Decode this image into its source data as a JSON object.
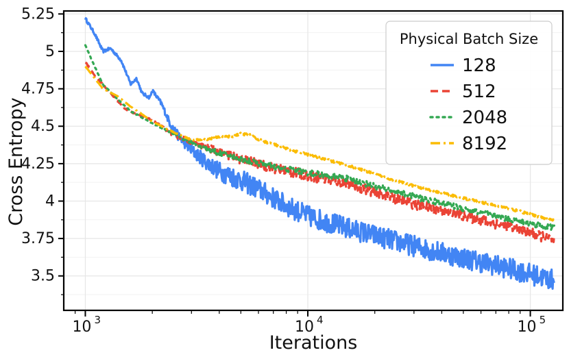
{
  "chart_data": {
    "type": "line",
    "title": "",
    "xlabel": "Iterations",
    "ylabel": "Cross Entropy",
    "xscale": "log",
    "xlim": [
      800,
      140000
    ],
    "ylim": [
      3.27,
      5.27
    ],
    "grid": true,
    "legend_title": "Physical Batch Size",
    "legend_position": "top-right",
    "x_ticks": [
      {
        "value": 1000,
        "base": "10",
        "exp": "3"
      },
      {
        "value": 10000,
        "base": "10",
        "exp": "4"
      },
      {
        "value": 100000,
        "base": "10",
        "exp": "5"
      }
    ],
    "y_ticks": [
      {
        "value": 3.5,
        "label": "3.5"
      },
      {
        "value": 3.75,
        "label": "3.75"
      },
      {
        "value": 4.0,
        "label": "4"
      },
      {
        "value": 4.25,
        "label": "4.25"
      },
      {
        "value": 4.5,
        "label": "4.5"
      },
      {
        "value": 4.75,
        "label": "4.75"
      },
      {
        "value": 5.0,
        "label": "5"
      },
      {
        "value": 5.25,
        "label": "5.25"
      }
    ],
    "series": [
      {
        "name": "128",
        "color": "#4285f4",
        "dash": "solid",
        "noise": 0.07,
        "points": [
          [
            1000,
            5.22
          ],
          [
            1100,
            5.12
          ],
          [
            1200,
            5.0
          ],
          [
            1300,
            5.02
          ],
          [
            1450,
            4.94
          ],
          [
            1600,
            4.78
          ],
          [
            1700,
            4.82
          ],
          [
            1800,
            4.72
          ],
          [
            1950,
            4.69
          ],
          [
            2000,
            4.74
          ],
          [
            2200,
            4.65
          ],
          [
            2400,
            4.52
          ],
          [
            2600,
            4.44
          ],
          [
            3000,
            4.34
          ],
          [
            3500,
            4.26
          ],
          [
            4000,
            4.2
          ],
          [
            5000,
            4.14
          ],
          [
            6000,
            4.08
          ],
          [
            7000,
            4.02
          ],
          [
            8000,
            3.97
          ],
          [
            10000,
            3.9
          ],
          [
            15000,
            3.82
          ],
          [
            20000,
            3.77
          ],
          [
            30000,
            3.7
          ],
          [
            50000,
            3.62
          ],
          [
            80000,
            3.55
          ],
          [
            128000,
            3.47
          ]
        ]
      },
      {
        "name": "512",
        "color": "#ea4335",
        "dash": "dashed",
        "noise": 0.035,
        "points": [
          [
            1000,
            4.93
          ],
          [
            1100,
            4.84
          ],
          [
            1300,
            4.72
          ],
          [
            1500,
            4.62
          ],
          [
            1700,
            4.58
          ],
          [
            2000,
            4.54
          ],
          [
            2500,
            4.44
          ],
          [
            3000,
            4.4
          ],
          [
            4000,
            4.33
          ],
          [
            5000,
            4.28
          ],
          [
            7000,
            4.22
          ],
          [
            10000,
            4.17
          ],
          [
            15000,
            4.12
          ],
          [
            20000,
            4.06
          ],
          [
            30000,
            3.98
          ],
          [
            50000,
            3.9
          ],
          [
            80000,
            3.83
          ],
          [
            128000,
            3.74
          ]
        ]
      },
      {
        "name": "2048",
        "color": "#34a853",
        "dash": "dotted",
        "noise": 0.02,
        "points": [
          [
            1000,
            5.04
          ],
          [
            1100,
            4.9
          ],
          [
            1200,
            4.78
          ],
          [
            1400,
            4.68
          ],
          [
            1600,
            4.6
          ],
          [
            2000,
            4.52
          ],
          [
            2500,
            4.45
          ],
          [
            3000,
            4.39
          ],
          [
            4000,
            4.32
          ],
          [
            5000,
            4.28
          ],
          [
            7000,
            4.23
          ],
          [
            10000,
            4.19
          ],
          [
            15000,
            4.15
          ],
          [
            20000,
            4.1
          ],
          [
            30000,
            4.03
          ],
          [
            50000,
            3.95
          ],
          [
            80000,
            3.88
          ],
          [
            128000,
            3.82
          ]
        ]
      },
      {
        "name": "8192",
        "color": "#fbbc04",
        "dash": "dashdot",
        "noise": 0.008,
        "points": [
          [
            1000,
            4.9
          ],
          [
            1200,
            4.75
          ],
          [
            1400,
            4.7
          ],
          [
            1600,
            4.63
          ],
          [
            1800,
            4.58
          ],
          [
            2000,
            4.53
          ],
          [
            2500,
            4.46
          ],
          [
            3000,
            4.41
          ],
          [
            3500,
            4.41
          ],
          [
            4000,
            4.43
          ],
          [
            4500,
            4.43
          ],
          [
            5000,
            4.45
          ],
          [
            5500,
            4.44
          ],
          [
            6000,
            4.41
          ],
          [
            7000,
            4.38
          ],
          [
            8000,
            4.35
          ],
          [
            10000,
            4.31
          ],
          [
            15000,
            4.24
          ],
          [
            20000,
            4.18
          ],
          [
            30000,
            4.1
          ],
          [
            50000,
            4.02
          ],
          [
            80000,
            3.95
          ],
          [
            128000,
            3.87
          ]
        ]
      }
    ]
  }
}
